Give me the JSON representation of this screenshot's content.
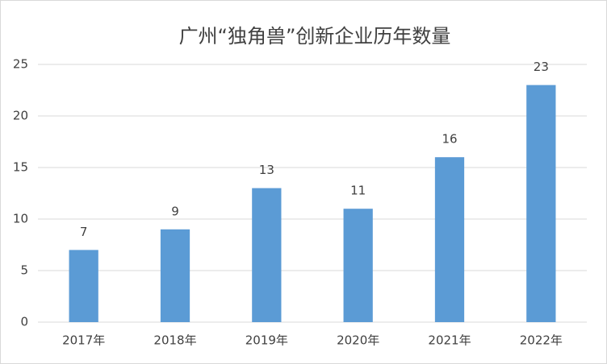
{
  "chart_data": {
    "type": "bar",
    "title": "广州“独角兽”创新企业历年数量",
    "categories": [
      "2017年",
      "2018年",
      "2019年",
      "2020年",
      "2021年",
      "2022年"
    ],
    "values": [
      7,
      9,
      13,
      11,
      16,
      23
    ],
    "color": "#5b9bd5",
    "ylim": [
      0,
      25
    ],
    "yticks": [
      0,
      5,
      10,
      15,
      20,
      25
    ],
    "grid": true
  }
}
